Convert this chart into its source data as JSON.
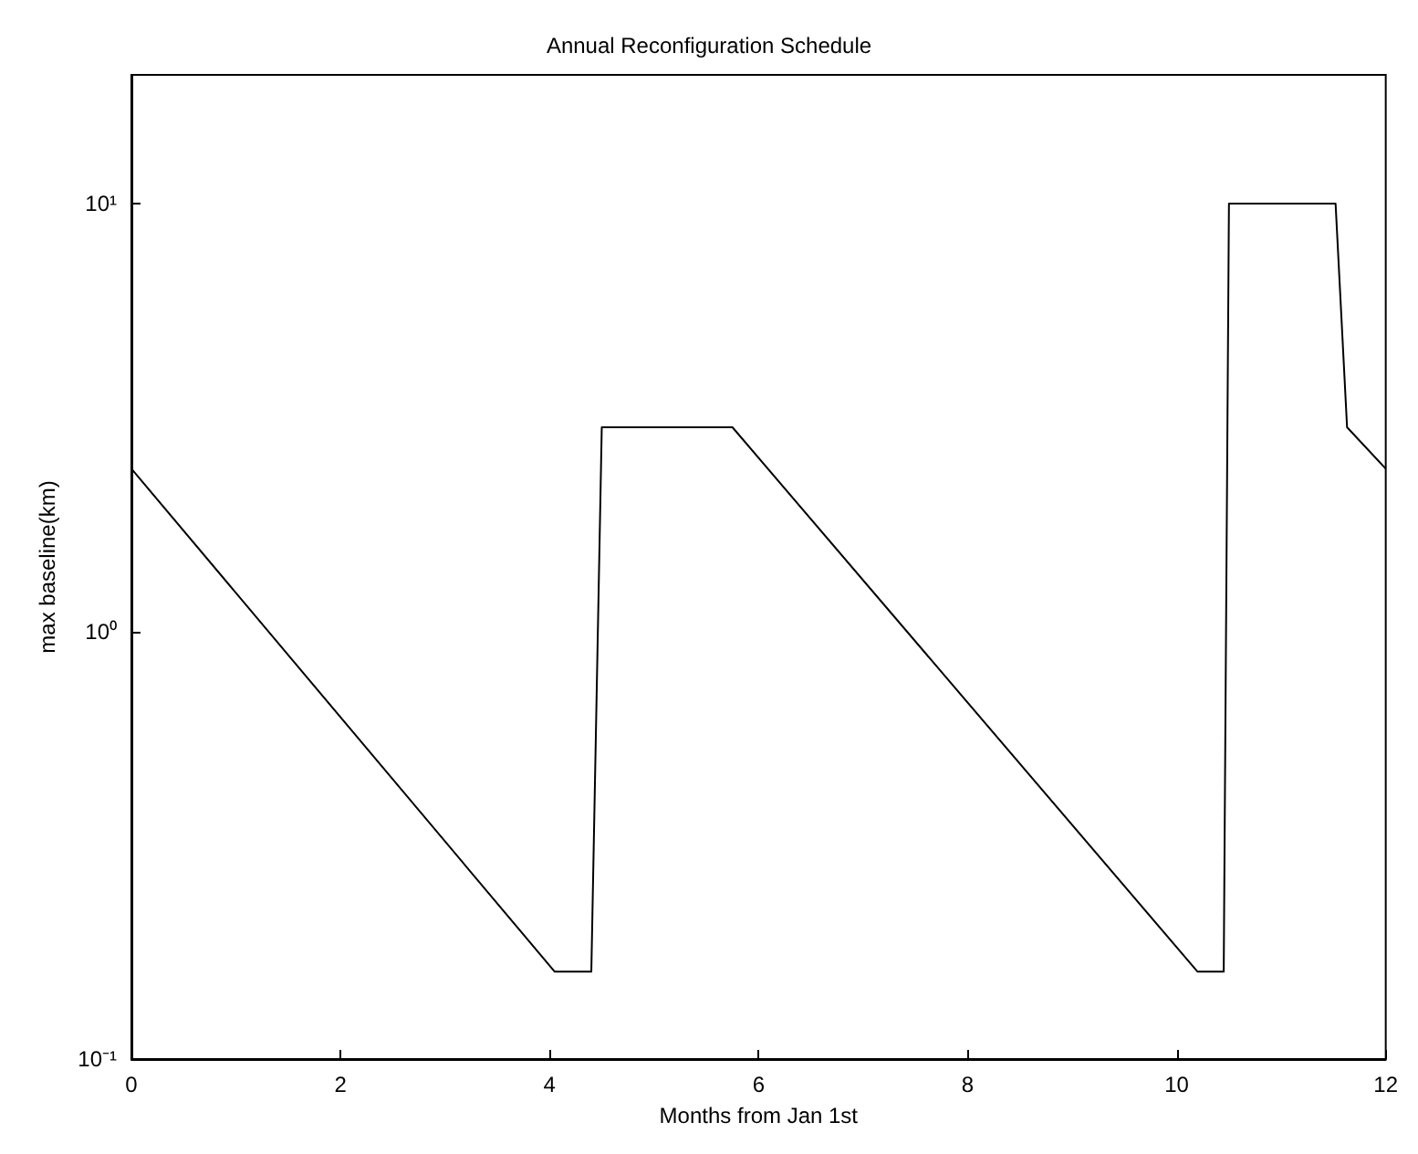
{
  "chart_data": {
    "type": "line",
    "title": "Annual Reconfiguration Schedule",
    "xlabel": "Months from Jan 1st",
    "ylabel": "max baseline(km)",
    "x": [
      0,
      4.05,
      4.4,
      4.5,
      5.75,
      10.2,
      10.45,
      10.5,
      11.52,
      11.63,
      12
    ],
    "series": [
      {
        "color": "#000000",
        "values": [
          2.4,
          0.16,
          0.16,
          3,
          3,
          0.16,
          0.16,
          10,
          10,
          3,
          2.4
        ]
      }
    ],
    "xlim": [
      0,
      12
    ],
    "xticks": [
      0,
      2,
      4,
      6,
      8,
      10,
      12
    ],
    "ylim": [
      0.1,
      20
    ],
    "yticks": [
      {
        "value": 0.1,
        "label": "10⁻¹"
      },
      {
        "value": 1,
        "label": "10⁰"
      },
      {
        "value": 10,
        "label": "10¹"
      }
    ],
    "log": "y",
    "grid": false,
    "marker": "none",
    "line_style": "solid"
  }
}
